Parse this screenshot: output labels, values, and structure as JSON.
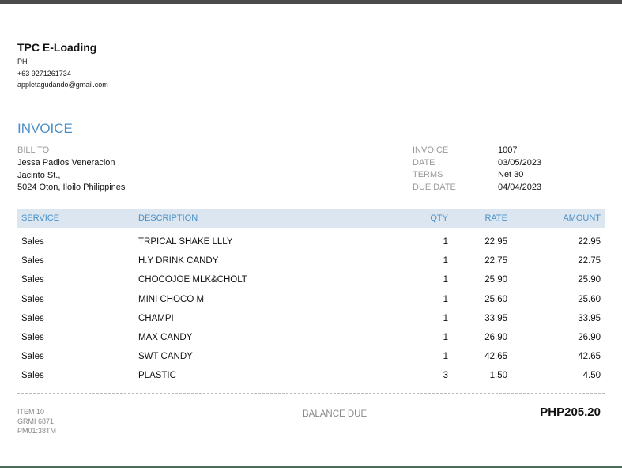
{
  "company": {
    "name": "TPC E-Loading",
    "country": "PH",
    "phone": "+63 9271261734",
    "email": "appletagudando@gmail.com"
  },
  "title": "INVOICE",
  "bill_to": {
    "label": "BILL TO",
    "name": "Jessa Padios Veneracion",
    "street": "Jacinto St.,",
    "city": "5024 Oton, Iloilo Philippines"
  },
  "meta": [
    {
      "label": "INVOICE",
      "value": "1007"
    },
    {
      "label": "DATE",
      "value": "03/05/2023"
    },
    {
      "label": "TERMS",
      "value": "Net 30"
    },
    {
      "label": "DUE DATE",
      "value": "04/04/2023"
    }
  ],
  "columns": {
    "service": "SERVICE",
    "description": "DESCRIPTION",
    "qty": "QTY",
    "rate": "RATE",
    "amount": "AMOUNT"
  },
  "rows": [
    {
      "service": "Sales",
      "description": "TRPICAL SHAKE LLLY",
      "qty": "1",
      "rate": "22.95",
      "amount": "22.95"
    },
    {
      "service": "Sales",
      "description": "H.Y DRINK CANDY",
      "qty": "1",
      "rate": "22.75",
      "amount": "22.75"
    },
    {
      "service": "Sales",
      "description": "CHOCOJOE MLK&CHOLT",
      "qty": "1",
      "rate": "25.90",
      "amount": "25.90"
    },
    {
      "service": "Sales",
      "description": "MINI CHOCO M",
      "qty": "1",
      "rate": "25.60",
      "amount": "25.60"
    },
    {
      "service": "Sales",
      "description": "CHAMPI",
      "qty": "1",
      "rate": "33.95",
      "amount": "33.95"
    },
    {
      "service": "Sales",
      "description": "MAX CANDY",
      "qty": "1",
      "rate": "26.90",
      "amount": "26.90"
    },
    {
      "service": "Sales",
      "description": "SWT CANDY",
      "qty": "1",
      "rate": "42.65",
      "amount": "42.65"
    },
    {
      "service": "Sales",
      "description": "PLASTIC",
      "qty": "3",
      "rate": "1.50",
      "amount": "4.50"
    }
  ],
  "footer": {
    "notes": [
      "ITEM 10",
      "GRMI 6871",
      "PM01:38TM"
    ],
    "balance_label": "BALANCE DUE",
    "balance": "PHP205.20"
  },
  "colors": {
    "accent": "#4a90c8",
    "header_band": "#dbe6f0"
  }
}
